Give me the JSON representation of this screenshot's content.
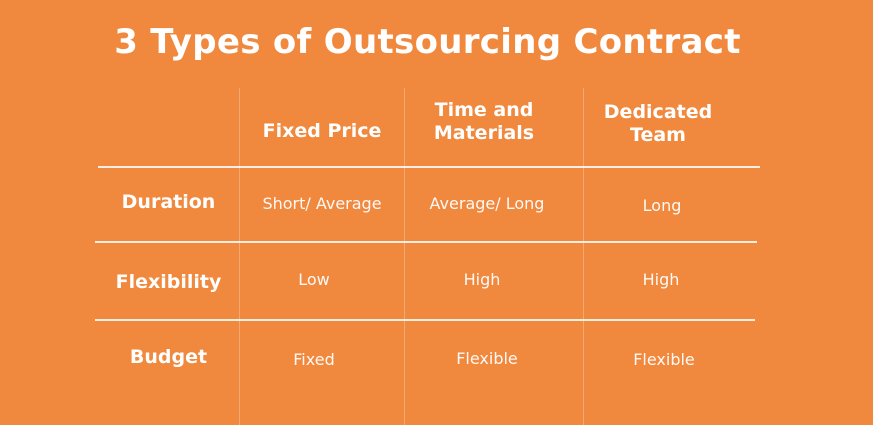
{
  "title": "3 Types of Outsourcing Contract",
  "columns": [
    "Fixed Price",
    "Time and\nMaterials",
    "Dedicated\nTeam"
  ],
  "rows": [
    {
      "label": "Duration",
      "values": [
        "Short/ Average",
        "Average/ Long",
        "Long"
      ]
    },
    {
      "label": "Flexibility",
      "values": [
        "Low",
        "High",
        "High"
      ]
    },
    {
      "label": "Budget",
      "values": [
        "Fixed",
        "Flexible",
        "Flexible"
      ]
    }
  ],
  "colors": {
    "background": "#f0883e",
    "text": "#ffffff"
  }
}
